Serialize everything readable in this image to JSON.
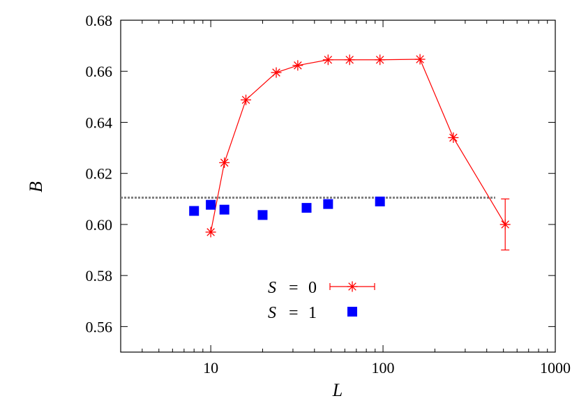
{
  "chart_data": {
    "type": "scatter",
    "xlabel": "L",
    "ylabel": "B",
    "x_scale": "log",
    "xlim": [
      3,
      1000
    ],
    "ylim": [
      0.55,
      0.68
    ],
    "x_ticks": [
      10,
      100,
      1000
    ],
    "x_tick_labels": [
      "10",
      "100",
      "1000"
    ],
    "y_ticks": [
      0.56,
      0.58,
      0.6,
      0.62,
      0.64,
      0.66,
      0.68
    ],
    "y_tick_labels": [
      "0.56",
      "0.58",
      "0.60",
      "0.62",
      "0.64",
      "0.66",
      "0.68"
    ],
    "grid": false,
    "legend_position": "bottom-center",
    "reference_line": {
      "y": 0.6105,
      "style": "dotted",
      "color": "#808080"
    },
    "series": [
      {
        "name": "S = 0",
        "legend_symbol": "S",
        "legend_value": "0",
        "color": "#ff0000",
        "marker": "asterisk",
        "connected": true,
        "x": [
          10,
          12,
          16,
          24,
          32,
          48,
          64,
          96,
          164,
          256,
          512
        ],
        "y": [
          0.597,
          0.6242,
          0.6488,
          0.6595,
          0.6623,
          0.6645,
          0.6645,
          0.6645,
          0.6647,
          0.634,
          0.6
        ],
        "error": [
          0,
          0,
          0,
          0,
          0,
          0,
          0,
          0,
          0,
          0,
          0.01
        ]
      },
      {
        "name": "S = 1",
        "legend_symbol": "S",
        "legend_value": "1",
        "color": "#0000ff",
        "marker": "square",
        "connected": false,
        "x": [
          8,
          10,
          12,
          20,
          36,
          48,
          96
        ],
        "y": [
          0.6053,
          0.6077,
          0.6058,
          0.6037,
          0.6065,
          0.608,
          0.609
        ]
      }
    ]
  }
}
